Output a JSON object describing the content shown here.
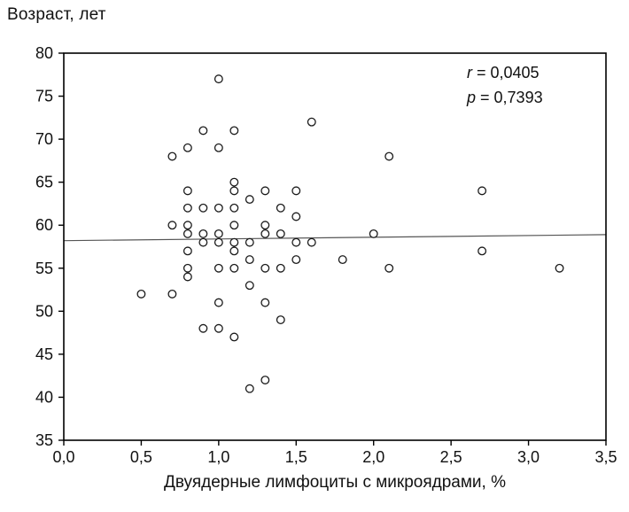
{
  "page": {
    "y_axis_title": "Возраст, лет",
    "x_axis_title": "Двуядерные лимфоциты с микроядрами, %"
  },
  "annotation": {
    "r_var": "r",
    "r_rest": " = 0,0405",
    "p_var": "p",
    "p_rest": " = 0,7393"
  },
  "chart_data": {
    "type": "scatter",
    "title": "",
    "xlabel": "Двуядерные лимфоциты с микроядрами, %",
    "ylabel": "Возраст, лет",
    "xlim": [
      0,
      3.5
    ],
    "ylim": [
      35,
      80
    ],
    "grid": false,
    "legend": "none",
    "correlation_r": "0,0405",
    "p_value": "0,7393",
    "x_ticks": [
      {
        "v": 0.0,
        "label": "0,0"
      },
      {
        "v": 0.5,
        "label": "0,5"
      },
      {
        "v": 1.0,
        "label": "1,0"
      },
      {
        "v": 1.5,
        "label": "1,5"
      },
      {
        "v": 2.0,
        "label": "2,0"
      },
      {
        "v": 2.5,
        "label": "2,5"
      },
      {
        "v": 3.0,
        "label": "3,0"
      },
      {
        "v": 3.5,
        "label": "3,5"
      }
    ],
    "y_ticks": [
      {
        "v": 35,
        "label": "35"
      },
      {
        "v": 40,
        "label": "40"
      },
      {
        "v": 45,
        "label": "45"
      },
      {
        "v": 50,
        "label": "50"
      },
      {
        "v": 55,
        "label": "55"
      },
      {
        "v": 60,
        "label": "60"
      },
      {
        "v": 65,
        "label": "65"
      },
      {
        "v": 70,
        "label": "70"
      },
      {
        "v": 75,
        "label": "75"
      },
      {
        "v": 80,
        "label": "80"
      }
    ],
    "points": [
      [
        0.5,
        52
      ],
      [
        0.7,
        68
      ],
      [
        0.7,
        60
      ],
      [
        0.7,
        52
      ],
      [
        0.8,
        69
      ],
      [
        0.8,
        64
      ],
      [
        0.8,
        62
      ],
      [
        0.8,
        60
      ],
      [
        0.8,
        59
      ],
      [
        0.8,
        57
      ],
      [
        0.8,
        55
      ],
      [
        0.8,
        54
      ],
      [
        0.9,
        71
      ],
      [
        0.9,
        62
      ],
      [
        0.9,
        59
      ],
      [
        0.9,
        58
      ],
      [
        0.9,
        48
      ],
      [
        1.0,
        77
      ],
      [
        1.0,
        69
      ],
      [
        1.0,
        62
      ],
      [
        1.0,
        59
      ],
      [
        1.0,
        58
      ],
      [
        1.0,
        55
      ],
      [
        1.0,
        51
      ],
      [
        1.0,
        48
      ],
      [
        1.1,
        71
      ],
      [
        1.1,
        65
      ],
      [
        1.1,
        64
      ],
      [
        1.1,
        62
      ],
      [
        1.1,
        60
      ],
      [
        1.1,
        58
      ],
      [
        1.1,
        57
      ],
      [
        1.1,
        55
      ],
      [
        1.1,
        47
      ],
      [
        1.2,
        63
      ],
      [
        1.2,
        58
      ],
      [
        1.2,
        56
      ],
      [
        1.2,
        53
      ],
      [
        1.2,
        41
      ],
      [
        1.3,
        64
      ],
      [
        1.3,
        60
      ],
      [
        1.3,
        59
      ],
      [
        1.3,
        55
      ],
      [
        1.3,
        51
      ],
      [
        1.3,
        42
      ],
      [
        1.4,
        62
      ],
      [
        1.4,
        59
      ],
      [
        1.4,
        55
      ],
      [
        1.4,
        49
      ],
      [
        1.5,
        64
      ],
      [
        1.5,
        61
      ],
      [
        1.5,
        58
      ],
      [
        1.5,
        56
      ],
      [
        1.6,
        72
      ],
      [
        1.6,
        58
      ],
      [
        1.8,
        56
      ],
      [
        2.0,
        59
      ],
      [
        2.1,
        68
      ],
      [
        2.1,
        55
      ],
      [
        2.7,
        64
      ],
      [
        2.7,
        57
      ],
      [
        3.2,
        55
      ]
    ],
    "trend_line": {
      "x1": 0.0,
      "y1": 58.2,
      "x2": 3.5,
      "y2": 58.9
    },
    "marker": {
      "shape": "open-circle",
      "fill": "#ffffff",
      "stroke": "#1a1a1a",
      "radius": 4.3
    },
    "colors": {
      "frame": "#000000",
      "trend": "#555555",
      "text": "#111111"
    }
  }
}
